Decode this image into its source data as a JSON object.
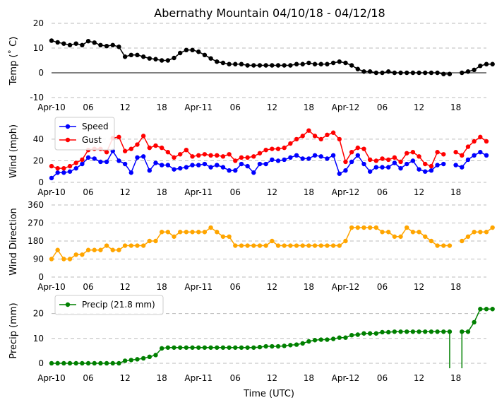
{
  "title": "Abernathy Mountain 04/10/18 - 04/12/18",
  "xlabel": "Time (UTC)",
  "x_ticks": [
    {
      "hour": 0,
      "label": "Apr-10"
    },
    {
      "hour": 6,
      "label": "06"
    },
    {
      "hour": 12,
      "label": "12"
    },
    {
      "hour": 18,
      "label": "18"
    },
    {
      "hour": 24,
      "label": "Apr-11"
    },
    {
      "hour": 30,
      "label": "06"
    },
    {
      "hour": 36,
      "label": "12"
    },
    {
      "hour": 42,
      "label": "18"
    },
    {
      "hour": 48,
      "label": "Apr-12"
    },
    {
      "hour": 54,
      "label": "06"
    },
    {
      "hour": 60,
      "label": "12"
    },
    {
      "hour": 66,
      "label": "18"
    }
  ],
  "x_range": [
    0,
    71
  ],
  "colors": {
    "temp": "#000000",
    "speed": "#0000ff",
    "gust": "#ff0000",
    "direction": "#ffa500",
    "precip": "#008000",
    "grid": "#bbbbbb"
  },
  "chart_data": [
    {
      "type": "line",
      "id": "temp",
      "ylabel": "Temp ($^\\circ$C)",
      "ylabel_display": "Temp (˚ C)",
      "ylim": [
        -10,
        20
      ],
      "yticks": [
        -10,
        0,
        10,
        20
      ],
      "zero_line": true,
      "series": [
        {
          "name": "Temp",
          "color": "#000000",
          "values": [
            13,
            12.3,
            11.8,
            11.2,
            11.8,
            11.2,
            12.8,
            12.2,
            11.2,
            10.8,
            11.2,
            10.5,
            6.5,
            7.2,
            7.2,
            6.5,
            5.8,
            5.5,
            5,
            5,
            6,
            8,
            9.2,
            9.2,
            8.5,
            7.2,
            5.8,
            4.5,
            4,
            3.5,
            3.5,
            3.5,
            3,
            3,
            3,
            3,
            3,
            3,
            3,
            3,
            3.5,
            3.5,
            4,
            3.5,
            3.5,
            3.5,
            4,
            4.5,
            4,
            3,
            1.5,
            0.5,
            0.5,
            0,
            0,
            0.5,
            0,
            0,
            0,
            0,
            0,
            0,
            0,
            0,
            -0.5,
            -0.5,
            null,
            0,
            0.5,
            1.2,
            2.8,
            3.5,
            3.5
          ]
        }
      ]
    },
    {
      "type": "line",
      "id": "wind",
      "ylabel": "Wind (mph)",
      "ylim": [
        0,
        55
      ],
      "yticks": [
        0,
        20,
        40
      ],
      "legend": {
        "position": "upper-left",
        "entries": [
          "Speed",
          "Gust"
        ]
      },
      "series": [
        {
          "name": "Speed",
          "color": "#0000ff",
          "values": [
            4,
            9,
            9,
            10,
            13,
            17,
            23,
            22,
            19,
            19,
            29,
            20,
            17,
            9,
            23,
            24,
            11,
            18,
            16,
            16,
            12,
            13,
            14,
            16,
            16,
            17,
            14,
            16,
            14,
            11,
            11,
            17,
            15,
            9,
            17,
            17,
            21,
            20,
            21,
            23,
            25,
            22,
            22,
            25,
            24,
            22,
            25,
            8,
            11,
            19,
            25,
            17,
            10,
            14,
            14,
            14,
            18,
            13,
            17,
            20,
            12,
            10,
            11,
            16,
            17,
            null,
            16,
            14,
            21,
            25,
            28,
            25
          ]
        },
        {
          "name": "Gust",
          "color": "#ff0000",
          "values": [
            15,
            13,
            13,
            15,
            18,
            21,
            30,
            31,
            31,
            28,
            41,
            42,
            29,
            31,
            35,
            43,
            32,
            34,
            32,
            28,
            23,
            26,
            30,
            24,
            25,
            26,
            25,
            25,
            24,
            26,
            20,
            23,
            23,
            24,
            27,
            30,
            31,
            31,
            32,
            36,
            40,
            43,
            48,
            43,
            40,
            44,
            46,
            40,
            19,
            28,
            32,
            31,
            21,
            20,
            22,
            21,
            23,
            19,
            27,
            28,
            24,
            17,
            15,
            28,
            26,
            null,
            28,
            25,
            33,
            38,
            42,
            38
          ]
        }
      ]
    },
    {
      "type": "line",
      "id": "direction",
      "ylabel": "Wind Direction",
      "ylim": [
        0,
        360
      ],
      "yticks": [
        0,
        90,
        180,
        270,
        360
      ],
      "series": [
        {
          "name": "Direction",
          "color": "#ffa500",
          "values": [
            90,
            135,
            90,
            90,
            112,
            112,
            135,
            135,
            135,
            157,
            135,
            135,
            157,
            157,
            157,
            157,
            180,
            180,
            225,
            225,
            202,
            225,
            225,
            225,
            225,
            225,
            247,
            225,
            202,
            202,
            157,
            157,
            157,
            157,
            157,
            157,
            180,
            157,
            157,
            157,
            157,
            157,
            157,
            157,
            157,
            157,
            157,
            157,
            180,
            247,
            247,
            247,
            247,
            247,
            225,
            225,
            202,
            202,
            247,
            225,
            225,
            202,
            180,
            157,
            157,
            157,
            null,
            180,
            202,
            225,
            225,
            225,
            247
          ]
        }
      ]
    },
    {
      "type": "line",
      "id": "precip",
      "ylabel": "Precip (mm)",
      "ylim": [
        -2,
        25
      ],
      "yticks": [
        0,
        10,
        20
      ],
      "legend": {
        "position": "upper-left",
        "entries": [
          "Precip (21.8 mm)"
        ]
      },
      "series": [
        {
          "name": "Precip (21.8 mm)",
          "color": "#008000",
          "values": [
            0,
            0,
            0,
            0,
            0,
            0,
            0,
            0,
            0,
            0,
            0,
            0,
            1,
            1.3,
            1.6,
            2,
            2.6,
            3.3,
            6,
            6.3,
            6.3,
            6.3,
            6.3,
            6.3,
            6.3,
            6.3,
            6.3,
            6.3,
            6.3,
            6.3,
            6.3,
            6.3,
            6.3,
            6.3,
            6.5,
            6.8,
            6.8,
            6.8,
            7,
            7.3,
            7.5,
            8,
            8.8,
            9.3,
            9.5,
            9.5,
            9.8,
            10.3,
            10.3,
            11.3,
            11.5,
            12,
            12,
            12,
            12.5,
            12.5,
            12.7,
            12.7,
            12.7,
            12.7,
            12.7,
            12.7,
            12.7,
            12.7,
            12.7,
            12.7,
            null,
            12.7,
            12.7,
            16.5,
            21.8,
            21.8,
            21.8
          ]
        }
      ],
      "gap_spike_min": -2
    }
  ]
}
